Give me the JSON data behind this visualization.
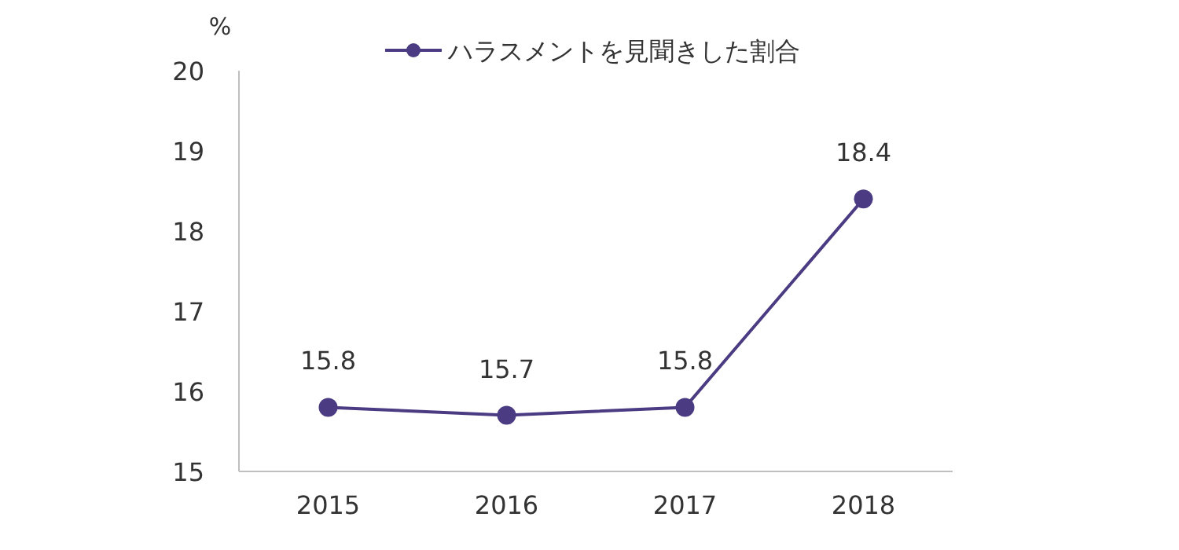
{
  "chart_data": {
    "type": "line",
    "ylabel": "%",
    "categories": [
      "2015",
      "2016",
      "2017",
      "2018"
    ],
    "series": [
      {
        "name": "ハラスメントを見聞きした割合",
        "color": "#4b3b82",
        "values": [
          15.8,
          15.7,
          15.8,
          18.4
        ]
      }
    ],
    "ylim": [
      15,
      20
    ],
    "yticks": [
      15,
      16,
      17,
      18,
      19,
      20
    ],
    "grid": false,
    "legend": "top",
    "marker": "circle",
    "line_style": "solid",
    "data_labels": true
  }
}
